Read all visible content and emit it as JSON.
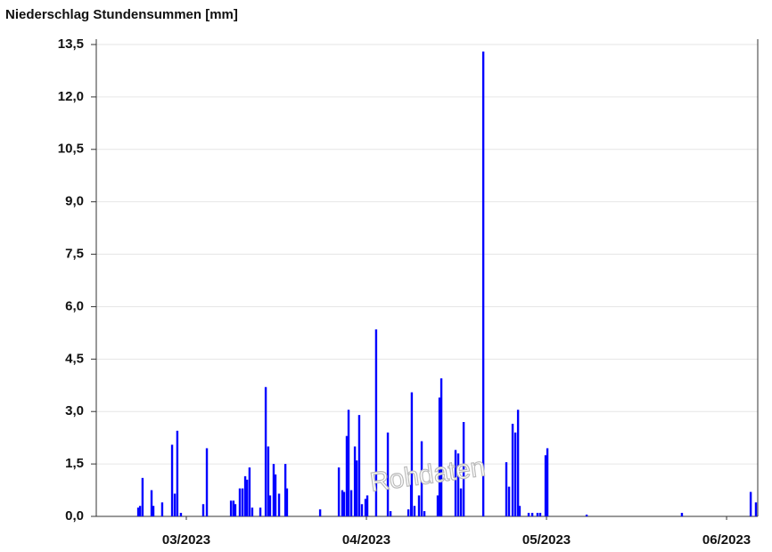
{
  "chart_data": {
    "type": "bar",
    "title": "Niederschlag Stundensummen [mm]",
    "watermark": "Rohdaten",
    "series": [
      {
        "name": "Niederschlag",
        "color": "#0000ff",
        "x": [
          3.233,
          3.243,
          3.257,
          3.307,
          3.317,
          3.366,
          3.421,
          3.436,
          3.45,
          3.47,
          3.594,
          3.614,
          3.748,
          3.762,
          3.772,
          3.797,
          3.812,
          3.827,
          3.837,
          3.851,
          3.866,
          3.911,
          3.941,
          3.955,
          3.965,
          3.985,
          3.995,
          4.015,
          4.05,
          4.059,
          4.243,
          4.347,
          4.366,
          4.376,
          4.391,
          4.401,
          4.416,
          4.436,
          4.446,
          4.46,
          4.475,
          4.495,
          4.505,
          4.554,
          4.619,
          4.634,
          4.733,
          4.748,
          4.752,
          4.767,
          4.792,
          4.807,
          4.822,
          4.896,
          4.906,
          4.916,
          4.995,
          5.01,
          5.025,
          5.04,
          5.149,
          5.277,
          5.292,
          5.312,
          5.327,
          5.342,
          5.351,
          5.401,
          5.421,
          5.45,
          5.465,
          5.495,
          5.505,
          5.723,
          6.252,
          6.634,
          6.663
        ],
        "values": [
          0.25,
          0.3,
          1.1,
          0.75,
          0.3,
          0.4,
          2.05,
          0.65,
          2.45,
          0.1,
          0.35,
          1.95,
          0.45,
          0.45,
          0.35,
          0.8,
          0.8,
          1.15,
          1.05,
          1.4,
          0.25,
          0.25,
          3.7,
          2.0,
          0.6,
          1.5,
          1.2,
          0.65,
          1.5,
          0.8,
          0.2,
          1.4,
          0.75,
          0.7,
          2.3,
          3.05,
          0.75,
          2.0,
          1.6,
          2.9,
          0.35,
          0.5,
          0.6,
          5.35,
          2.4,
          0.15,
          0.2,
          0.9,
          3.55,
          0.3,
          0.6,
          2.15,
          0.15,
          0.6,
          3.4,
          3.95,
          1.9,
          1.8,
          0.8,
          2.7,
          13.3,
          1.55,
          0.85,
          2.65,
          2.4,
          3.05,
          0.3,
          0.1,
          0.1,
          0.1,
          0.1,
          1.75,
          1.95,
          0.05,
          0.1,
          0.7,
          0.4
        ]
      }
    ],
    "xlim": [
      3,
      6.673
    ],
    "xticks": [
      {
        "value": 3.5,
        "label": "03/2023"
      },
      {
        "value": 4.5,
        "label": "04/2023"
      },
      {
        "value": 5.5,
        "label": "05/2023"
      },
      {
        "value": 6.5,
        "label": "06/2023"
      }
    ],
    "ylim": [
      0,
      13.5
    ],
    "yticks": [
      {
        "value": 0,
        "label": "0,0"
      },
      {
        "value": 1.5,
        "label": "1,5"
      },
      {
        "value": 3,
        "label": "3,0"
      },
      {
        "value": 4.5,
        "label": "4,5"
      },
      {
        "value": 6,
        "label": "6,0"
      },
      {
        "value": 7.5,
        "label": "7,5"
      },
      {
        "value": 9,
        "label": "9,0"
      },
      {
        "value": 10.5,
        "label": "10,5"
      },
      {
        "value": 12,
        "label": "12,0"
      },
      {
        "value": 13.5,
        "label": "13,5"
      }
    ],
    "grid": true
  }
}
